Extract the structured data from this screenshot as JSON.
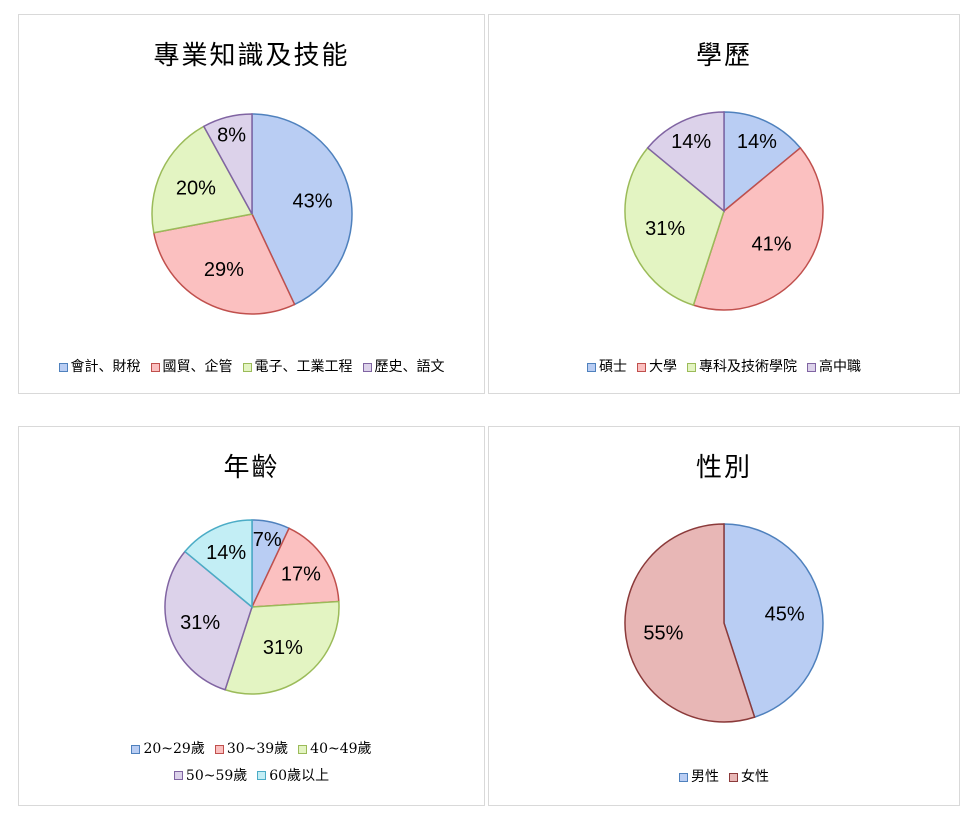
{
  "colors": {
    "blue": {
      "fill": "#b9cdf3",
      "stroke": "#4f81bd"
    },
    "red": {
      "fill": "#fbc0c0",
      "stroke": "#c0504d"
    },
    "green": {
      "fill": "#e3f4c2",
      "stroke": "#9bbb59"
    },
    "purple": {
      "fill": "#dcd2ea",
      "stroke": "#8064a2"
    },
    "cyan": {
      "fill": "#c3eef5",
      "stroke": "#4bacc6"
    },
    "rose": {
      "fill": "#e8b7b6",
      "stroke": "#8b3a3a"
    }
  },
  "chart_data": [
    {
      "type": "pie",
      "title": "專業知識及技能",
      "start_angle": 0,
      "slices": [
        {
          "label": "會計、財稅",
          "value": 43,
          "pct_label": "43%",
          "color": "blue"
        },
        {
          "label": "國貿、企管",
          "value": 29,
          "pct_label": "29%",
          "color": "red"
        },
        {
          "label": "電子、工業工程",
          "value": 20,
          "pct_label": "20%",
          "color": "green"
        },
        {
          "label": "歷史、語文",
          "value": 8,
          "pct_label": "8%",
          "color": "purple"
        }
      ],
      "legend_position": "bottom"
    },
    {
      "type": "pie",
      "title": "學歷",
      "start_angle": 0,
      "slices": [
        {
          "label": "碩士",
          "value": 14,
          "pct_label": "14%",
          "color": "blue"
        },
        {
          "label": "大學",
          "value": 41,
          "pct_label": "41%",
          "color": "red"
        },
        {
          "label": "專科及技術學院",
          "value": 31,
          "pct_label": "31%",
          "color": "green"
        },
        {
          "label": "高中職",
          "value": 14,
          "pct_label": "14%",
          "color": "purple"
        }
      ],
      "legend_position": "bottom"
    },
    {
      "type": "pie",
      "title": "年齡",
      "start_angle": 0,
      "slices": [
        {
          "label": "20~29歲",
          "value": 7,
          "pct_label": "7%",
          "color": "blue"
        },
        {
          "label": "30~39歲",
          "value": 17,
          "pct_label": "17%",
          "color": "red"
        },
        {
          "label": "40~49歲",
          "value": 31,
          "pct_label": "31%",
          "color": "green"
        },
        {
          "label": "50~59歲",
          "value": 31,
          "pct_label": "31%",
          "color": "purple"
        },
        {
          "label": "60歲以上",
          "value": 14,
          "pct_label": "14%",
          "color": "cyan"
        }
      ],
      "legend_position": "bottom"
    },
    {
      "type": "pie",
      "title": "性別",
      "start_angle": 0,
      "slices": [
        {
          "label": "男性",
          "value": 45,
          "pct_label": "45%",
          "color": "blue"
        },
        {
          "label": "女性",
          "value": 55,
          "pct_label": "55%",
          "color": "rose"
        }
      ],
      "legend_position": "bottom"
    }
  ]
}
